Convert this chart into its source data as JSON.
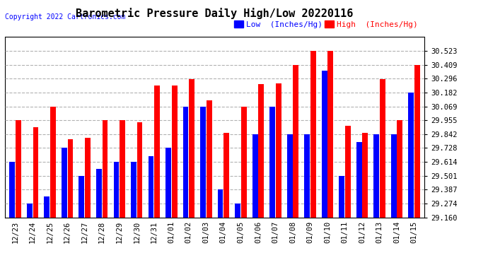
{
  "title": "Barometric Pressure Daily High/Low 20220116",
  "copyright": "Copyright 2022 Cartronics.com",
  "legend_low": "Low  (Inches/Hg)",
  "legend_high": "High  (Inches/Hg)",
  "dates": [
    "12/23",
    "12/24",
    "12/25",
    "12/26",
    "12/27",
    "12/28",
    "12/29",
    "12/30",
    "12/31",
    "01/01",
    "01/02",
    "01/03",
    "01/04",
    "01/05",
    "01/06",
    "01/07",
    "01/08",
    "01/09",
    "01/10",
    "01/11",
    "01/12",
    "01/13",
    "01/14",
    "01/15"
  ],
  "high_values": [
    29.955,
    29.9,
    30.069,
    29.8,
    29.81,
    29.955,
    29.955,
    29.94,
    30.24,
    30.24,
    30.295,
    30.12,
    29.855,
    30.069,
    30.25,
    30.26,
    30.409,
    30.523,
    30.523,
    29.91,
    29.855,
    30.295,
    29.955,
    30.409
  ],
  "low_values": [
    29.614,
    29.274,
    29.33,
    29.728,
    29.501,
    29.555,
    29.614,
    29.614,
    29.66,
    29.728,
    30.069,
    30.069,
    29.387,
    29.274,
    29.842,
    30.069,
    29.842,
    29.842,
    30.364,
    29.501,
    29.774,
    29.842,
    29.842,
    30.182
  ],
  "ylim_min": 29.16,
  "ylim_max": 30.637,
  "yticks": [
    29.16,
    29.274,
    29.387,
    29.501,
    29.614,
    29.728,
    29.842,
    29.955,
    30.069,
    30.182,
    30.296,
    30.409,
    30.523
  ],
  "high_color": "#FF0000",
  "low_color": "#0000FF",
  "bg_color": "#FFFFFF",
  "grid_color": "#AAAAAA",
  "title_fontsize": 11,
  "copyright_fontsize": 7,
  "legend_fontsize": 8,
  "tick_fontsize": 7.5
}
